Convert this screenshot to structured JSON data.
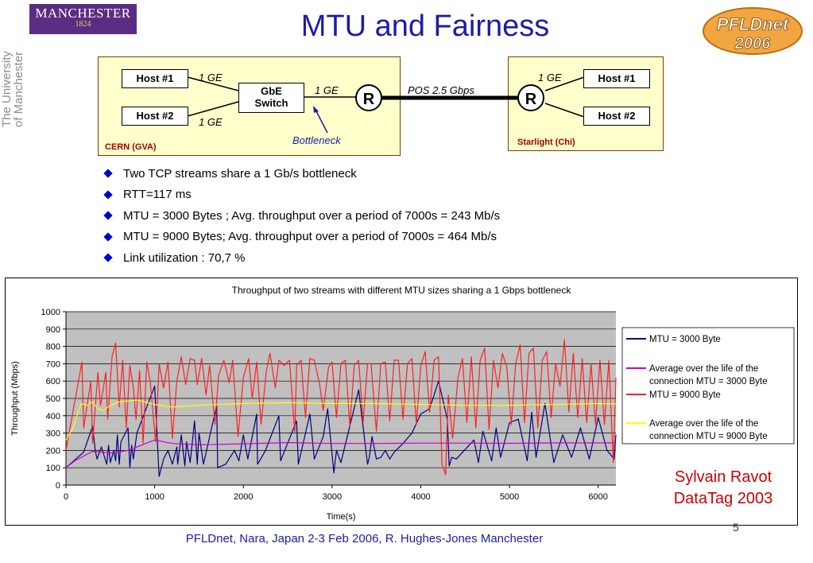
{
  "header": {
    "logo_name": "MANCHESTER",
    "logo_year": "1824",
    "university_line1": "The University",
    "university_line2": "of Manchester",
    "title": "MTU and Fairness",
    "pfld_logo": "PFLDnet 2006"
  },
  "diagram": {
    "left_site": "CERN (GVA)",
    "right_site": "Starlight (Chi)",
    "host1": "Host #1",
    "host2": "Host #2",
    "switch_line1": "GbE",
    "switch_line2": "Switch",
    "router": "R",
    "link_1ge": "1 GE",
    "link_pos": "POS 2.5 Gbps",
    "bottleneck": "Bottleneck"
  },
  "bullets": [
    "Two TCP streams share a 1 Gb/s bottleneck",
    "RTT=117 ms",
    "MTU = 3000 Bytes ; Avg. throughput over a period of 7000s = 243 Mb/s",
    "MTU = 9000 Bytes; Avg. throughput over a period of 7000s = 464 Mb/s",
    "Link utilization : 70,7 %"
  ],
  "credit": {
    "line1": "Sylvain Ravot",
    "line2": "DataTag 2003"
  },
  "footer": "PFLDnet, Nara, Japan 2-3 Feb 2006,  R. Hughes-Jones  Manchester",
  "page_number": "5",
  "chart_data": {
    "type": "line",
    "title": "Throughput of two streams with different MTU sizes sharing a 1 Gbps bottleneck",
    "xlabel": "Time(s)",
    "ylabel": "Throughput (Mbps)",
    "xlim": [
      0,
      6200
    ],
    "ylim": [
      0,
      1000
    ],
    "xticks": [
      0,
      1000,
      2000,
      3000,
      4000,
      5000,
      6000
    ],
    "yticks": [
      0,
      100,
      200,
      300,
      400,
      500,
      600,
      700,
      800,
      900,
      1000
    ],
    "grid": true,
    "plot_background": "#c0c0c0",
    "legend_position": "right",
    "series": [
      {
        "name": "MTU = 3000 Byte",
        "color": "#000080",
        "x": [
          0,
          200,
          300,
          330,
          350,
          400,
          460,
          480,
          500,
          540,
          560,
          580,
          600,
          620,
          700,
          720,
          740,
          760,
          800,
          1000,
          1050,
          1100,
          1150,
          1200,
          1250,
          1260,
          1300,
          1340,
          1360,
          1400,
          1450,
          1480,
          1500,
          1550,
          1700,
          1710,
          1800,
          1900,
          1950,
          2000,
          2050,
          2150,
          2160,
          2250,
          2400,
          2420,
          2600,
          2620,
          2750,
          2800,
          2900,
          2950,
          3020,
          3050,
          3100,
          3300,
          3400,
          3420,
          3450,
          3500,
          3550,
          3600,
          3650,
          3700,
          3800,
          3900,
          4000,
          4100,
          4200,
          4300,
          4320,
          4350,
          4400,
          4600,
          4650,
          4700,
          4800,
          4850,
          4900,
          5000,
          5100,
          5200,
          5250,
          5300,
          5400,
          5500,
          5600,
          5700,
          5800,
          5900,
          6000,
          6100,
          6180,
          6200
        ],
        "y": [
          100,
          190,
          340,
          200,
          150,
          220,
          120,
          230,
          130,
          200,
          140,
          290,
          120,
          250,
          330,
          100,
          230,
          150,
          300,
          570,
          50,
          150,
          200,
          120,
          220,
          120,
          290,
          110,
          250,
          130,
          370,
          120,
          300,
          120,
          460,
          100,
          120,
          200,
          140,
          290,
          150,
          410,
          120,
          200,
          400,
          140,
          370,
          120,
          410,
          150,
          280,
          440,
          70,
          200,
          130,
          550,
          120,
          160,
          280,
          150,
          160,
          200,
          150,
          190,
          240,
          300,
          410,
          440,
          600,
          380,
          110,
          160,
          150,
          260,
          130,
          310,
          140,
          330,
          160,
          360,
          380,
          140,
          420,
          160,
          470,
          130,
          290,
          160,
          330,
          150,
          390,
          200,
          150,
          290
        ]
      },
      {
        "name": "Average over the life of the connection MTU = 3000 Byte",
        "color": "#cc00cc",
        "x": [
          0,
          100,
          300,
          500,
          700,
          1000,
          1200,
          1500,
          2000,
          2500,
          3000,
          3500,
          4000,
          4500,
          5000,
          5500,
          6000,
          6200
        ],
        "y": [
          100,
          140,
          195,
          185,
          200,
          260,
          240,
          232,
          238,
          245,
          240,
          240,
          242,
          242,
          241,
          243,
          243,
          243
        ]
      },
      {
        "name": "MTU = 9000 Byte",
        "color": "#ff2020",
        "x": [
          0,
          180,
          200,
          280,
          300,
          360,
          390,
          450,
          470,
          520,
          560,
          600,
          640,
          680,
          720,
          760,
          790,
          830,
          870,
          910,
          950,
          1010,
          1050,
          1100,
          1150,
          1200,
          1250,
          1300,
          1350,
          1400,
          1450,
          1480,
          1530,
          1580,
          1620,
          1680,
          1720,
          1780,
          1840,
          1880,
          1940,
          2000,
          2060,
          2100,
          2150,
          2200,
          2260,
          2300,
          2360,
          2400,
          2460,
          2520,
          2580,
          2600,
          2650,
          2700,
          2750,
          2800,
          2860,
          2900,
          2960,
          3000,
          3050,
          3100,
          3150,
          3200,
          3250,
          3300,
          3350,
          3400,
          3440,
          3500,
          3550,
          3600,
          3650,
          3700,
          3750,
          3800,
          3850,
          3900,
          3950,
          4000,
          4050,
          4100,
          4150,
          4200,
          4240,
          4280,
          4310,
          4360,
          4420,
          4470,
          4520,
          4570,
          4620,
          4670,
          4720,
          4770,
          4820,
          4870,
          4920,
          4970,
          5020,
          5070,
          5120,
          5170,
          5220,
          5270,
          5320,
          5370,
          5420,
          5470,
          5520,
          5570,
          5620,
          5670,
          5720,
          5770,
          5820,
          5870,
          5920,
          5970,
          6020,
          6070,
          6120,
          6170,
          6200
        ],
        "y": [
          200,
          710,
          330,
          600,
          240,
          650,
          460,
          650,
          380,
          740,
          820,
          450,
          720,
          330,
          690,
          560,
          380,
          660,
          240,
          710,
          600,
          250,
          700,
          560,
          710,
          270,
          600,
          740,
          580,
          730,
          720,
          580,
          730,
          520,
          690,
          350,
          630,
          720,
          590,
          720,
          280,
          620,
          730,
          500,
          710,
          350,
          660,
          760,
          560,
          720,
          690,
          720,
          300,
          690,
          720,
          390,
          730,
          720,
          580,
          430,
          680,
          710,
          390,
          700,
          720,
          340,
          690,
          720,
          360,
          700,
          700,
          310,
          700,
          710,
          370,
          720,
          720,
          380,
          700,
          730,
          350,
          690,
          770,
          420,
          720,
          740,
          120,
          60,
          520,
          270,
          620,
          730,
          360,
          740,
          330,
          720,
          790,
          320,
          720,
          560,
          760,
          680,
          350,
          700,
          810,
          360,
          760,
          790,
          330,
          720,
          770,
          390,
          700,
          570,
          840,
          420,
          760,
          390,
          730,
          360,
          700,
          350,
          720,
          350,
          720,
          130,
          620
        ]
      },
      {
        "name": "Average over the life of the connection MTU = 9000 Byte",
        "color": "#ffff00",
        "x": [
          0,
          80,
          170,
          240,
          300,
          360,
          420,
          500,
          600,
          800,
          1000,
          1200,
          1500,
          2000,
          2500,
          3000,
          3500,
          4000,
          4500,
          5000,
          5500,
          6000,
          6200
        ],
        "y": [
          260,
          330,
          470,
          460,
          480,
          440,
          430,
          460,
          480,
          490,
          465,
          450,
          460,
          470,
          475,
          470,
          470,
          465,
          460,
          460,
          465,
          470,
          468
        ]
      }
    ]
  }
}
